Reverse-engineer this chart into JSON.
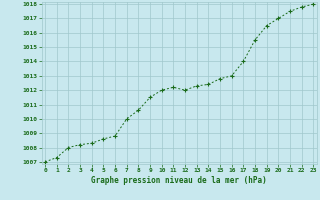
{
  "x": [
    0,
    1,
    2,
    3,
    4,
    5,
    6,
    7,
    8,
    9,
    10,
    11,
    12,
    13,
    14,
    15,
    16,
    17,
    18,
    19,
    20,
    21,
    22,
    23
  ],
  "y": [
    1007.0,
    1007.3,
    1008.0,
    1008.2,
    1008.3,
    1008.6,
    1008.8,
    1010.0,
    1010.6,
    1011.5,
    1012.0,
    1012.2,
    1012.0,
    1012.3,
    1012.4,
    1012.8,
    1013.0,
    1014.0,
    1015.5,
    1016.5,
    1017.0,
    1017.5,
    1017.8,
    1018.0
  ],
  "ylim": [
    1007,
    1018
  ],
  "yticks": [
    1007,
    1008,
    1009,
    1010,
    1011,
    1012,
    1013,
    1014,
    1015,
    1016,
    1017,
    1018
  ],
  "xticks": [
    0,
    1,
    2,
    3,
    4,
    5,
    6,
    7,
    8,
    9,
    10,
    11,
    12,
    13,
    14,
    15,
    16,
    17,
    18,
    19,
    20,
    21,
    22,
    23
  ],
  "line_color": "#1a6b1a",
  "marker_color": "#1a6b1a",
  "bg_color": "#c8e8ee",
  "grid_color": "#a0c8cc",
  "xlabel": "Graphe pression niveau de la mer (hPa)",
  "xlabel_color": "#1a6b1a",
  "tick_color": "#1a6b1a"
}
